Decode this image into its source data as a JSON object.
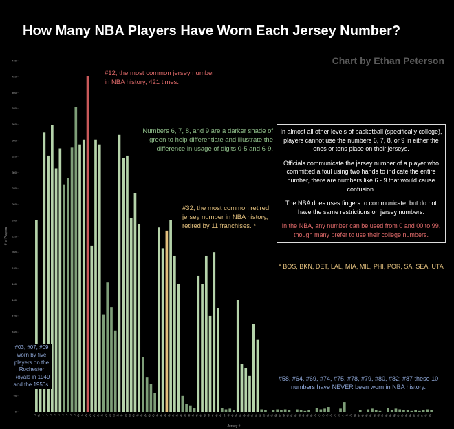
{
  "chart_data": {
    "type": "bar",
    "title": "How Many NBA Players Have Worn Each Jersey Number?",
    "credit": "Chart by Ethan Peterson",
    "y_label": "# of Players",
    "x_label": "Jersey #",
    "categories": [
      "0",
      "00",
      "1",
      "2",
      "3",
      "4",
      "5",
      "6",
      "7",
      "8",
      "9",
      "10",
      "11",
      "12",
      "13",
      "14",
      "15",
      "16",
      "17",
      "18",
      "19",
      "20",
      "21",
      "22",
      "23",
      "24",
      "25",
      "26",
      "27",
      "28",
      "29",
      "30",
      "31",
      "32",
      "33",
      "34",
      "35",
      "36",
      "37",
      "38",
      "39",
      "40",
      "41",
      "42",
      "43",
      "44",
      "45",
      "46",
      "47",
      "48",
      "49",
      "50",
      "51",
      "52",
      "53",
      "54",
      "55",
      "56",
      "57",
      "58",
      "59",
      "60",
      "61",
      "62",
      "63",
      "64",
      "65",
      "66",
      "67",
      "68",
      "69",
      "70",
      "71",
      "72",
      "73",
      "74",
      "75",
      "76",
      "77",
      "78",
      "79",
      "80",
      "81",
      "82",
      "83",
      "84",
      "85",
      "86",
      "87",
      "88",
      "89",
      "90",
      "91",
      "92",
      "93",
      "94",
      "95",
      "96",
      "97",
      "98",
      "99"
    ],
    "values": [
      240,
      47,
      350,
      321,
      359,
      305,
      330,
      285,
      293,
      331,
      382,
      335,
      341,
      421,
      208,
      341,
      335,
      122,
      162,
      131,
      102,
      347,
      318,
      321,
      243,
      274,
      235,
      69,
      43,
      35,
      24,
      231,
      205,
      227,
      240,
      195,
      160,
      20,
      10,
      8,
      5,
      170,
      160,
      195,
      120,
      200,
      130,
      5,
      3,
      4,
      2,
      140,
      60,
      55,
      45,
      110,
      90,
      3,
      2,
      0,
      2,
      3,
      2,
      3,
      2,
      0,
      3,
      2,
      1,
      2,
      0,
      5,
      3,
      4,
      6,
      0,
      0,
      4,
      12,
      0,
      0,
      0,
      2,
      0,
      3,
      4,
      2,
      1,
      0,
      5,
      2,
      4,
      3,
      2,
      2,
      1,
      2,
      1,
      2,
      3,
      2
    ],
    "colors": [
      "#b5d3aa",
      "#b5d3aa",
      "#b5d3aa",
      "#b5d3aa",
      "#b5d3aa",
      "#b5d3aa",
      "#b5d3aa",
      "#7e9e78",
      "#7e9e78",
      "#7e9e78",
      "#7e9e78",
      "#b5d3aa",
      "#b5d3aa",
      "#c9595a",
      "#b5d3aa",
      "#b5d3aa",
      "#b5d3aa",
      "#7e9e78",
      "#7e9e78",
      "#7e9e78",
      "#7e9e78",
      "#b5d3aa",
      "#b5d3aa",
      "#b5d3aa",
      "#b5d3aa",
      "#b5d3aa",
      "#b5d3aa",
      "#7e9e78",
      "#7e9e78",
      "#7e9e78",
      "#7e9e78",
      "#b5d3aa",
      "#b5d3aa",
      "#e3c07e",
      "#b5d3aa",
      "#b5d3aa",
      "#b5d3aa",
      "#7e9e78",
      "#7e9e78",
      "#7e9e78",
      "#7e9e78",
      "#b5d3aa",
      "#b5d3aa",
      "#b5d3aa",
      "#b5d3aa",
      "#b5d3aa",
      "#b5d3aa",
      "#7e9e78",
      "#7e9e78",
      "#7e9e78",
      "#7e9e78",
      "#b5d3aa",
      "#b5d3aa",
      "#b5d3aa",
      "#b5d3aa",
      "#b5d3aa",
      "#b5d3aa",
      "#7e9e78",
      "#7e9e78",
      "#7e9e78",
      "#7e9e78",
      "#7e9e78",
      "#7e9e78",
      "#7e9e78",
      "#7e9e78",
      "#7e9e78",
      "#7e9e78",
      "#7e9e78",
      "#7e9e78",
      "#7e9e78",
      "#7e9e78",
      "#7e9e78",
      "#7e9e78",
      "#7e9e78",
      "#7e9e78",
      "#7e9e78",
      "#7e9e78",
      "#7e9e78",
      "#7e9e78",
      "#7e9e78",
      "#7e9e78",
      "#7e9e78",
      "#7e9e78",
      "#7e9e78",
      "#7e9e78",
      "#7e9e78",
      "#7e9e78",
      "#7e9e78",
      "#7e9e78",
      "#7e9e78",
      "#7e9e78",
      "#7e9e78",
      "#7e9e78",
      "#7e9e78",
      "#7e9e78",
      "#7e9e78",
      "#7e9e78",
      "#7e9e78",
      "#7e9e78",
      "#7e9e78",
      "#7e9e78"
    ],
    "ylim": [
      0,
      440
    ],
    "yticks": [
      0,
      20,
      40,
      60,
      80,
      100,
      120,
      140,
      160,
      180,
      200,
      220,
      240,
      260,
      280,
      300,
      320,
      340,
      360,
      380,
      400,
      420,
      440
    ],
    "annotations": {
      "most_common": "#12, the most common jersey number in NBA history, 421 times.",
      "shades": "Numbers 6, 7, 8, and 9 are a darker shade of green to help differentiate and illustrate the difference in usage of digits 0-5 and 6-9.",
      "retired": "#32, the most common retired jersey number in NBA history, retired by 11 franchises. *",
      "franchises": "* BOS, BKN, DET, LAL, MIA, MIL, PHI, POR, SA, SEA, UTA",
      "royals": "#03, #07, #09 worn by five players on the Rochester Royals in 1949 and the 1950s.",
      "never": "#58, #64, #69, #74, #75, #78, #79, #80, #82; #87 these 10 numbers have NEVER been worn in NBA history."
    },
    "box": [
      "In almost all other levels of basketball (specifically college), players cannot use the numbers 6, 7, 8, or 9 in either the ones or tens place on their jerseys.",
      "Officials communicate the jersey number of a player who committed a foul using two hands to indicate the entire number, there are numbers like 6 - 9 that would cause confusion.",
      "The NBA does uses fingers to communicate, but do not have the same restrictions on jersey numbers.",
      "In the NBA, any number can be used from 0 and 00 to 99, though many prefer to use their college numbers."
    ]
  }
}
